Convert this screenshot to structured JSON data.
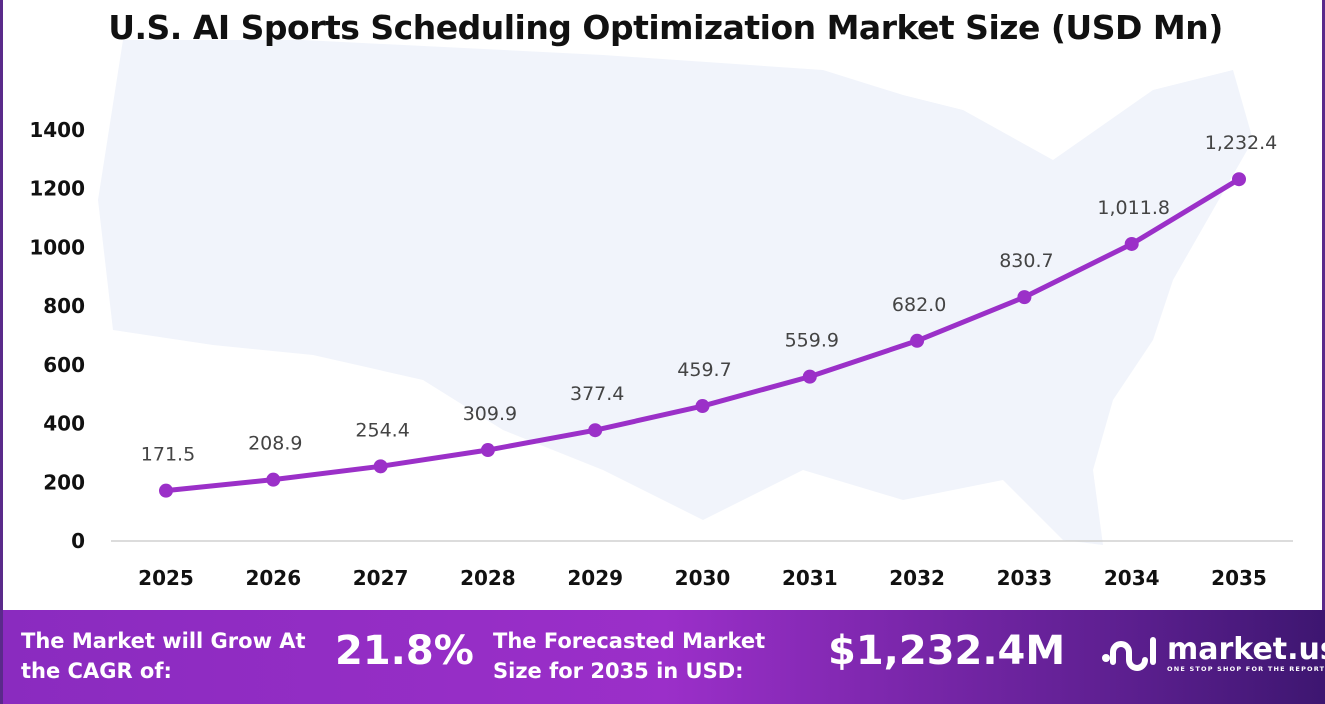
{
  "title": "U.S. AI Sports Scheduling Optimization Market Size (USD Mn)",
  "chart_data": {
    "type": "line",
    "title": "U.S. AI Sports Scheduling Optimization Market Size (USD Mn)",
    "categories": [
      "2025",
      "2026",
      "2027",
      "2028",
      "2029",
      "2030",
      "2031",
      "2032",
      "2033",
      "2034",
      "2035"
    ],
    "values": [
      171.5,
      208.9,
      254.4,
      309.9,
      377.4,
      459.7,
      559.9,
      682.0,
      830.7,
      1011.8,
      1232.4
    ],
    "data_labels": [
      "171.5",
      "208.9",
      "254.4",
      "309.9",
      "377.4",
      "459.7",
      "559.9",
      "682.0",
      "830.7",
      "1,011.8",
      "1,232.4"
    ],
    "yticks": [
      0,
      200,
      400,
      600,
      800,
      1000,
      1200,
      1400
    ],
    "ylim": [
      0,
      1400
    ],
    "grid": false,
    "line_color": "#9b30c8",
    "background": "faint US map silhouette"
  },
  "footer": {
    "cagr_label": "The Market will Grow At the CAGR of:",
    "cagr_value": "21.8%",
    "forecast_label": "The Forecasted Market Size for 2035 in USD:",
    "forecast_value": "$1,232.4M",
    "logo_name": "market.us",
    "logo_tagline": "ONE STOP SHOP FOR THE REPORTS"
  }
}
